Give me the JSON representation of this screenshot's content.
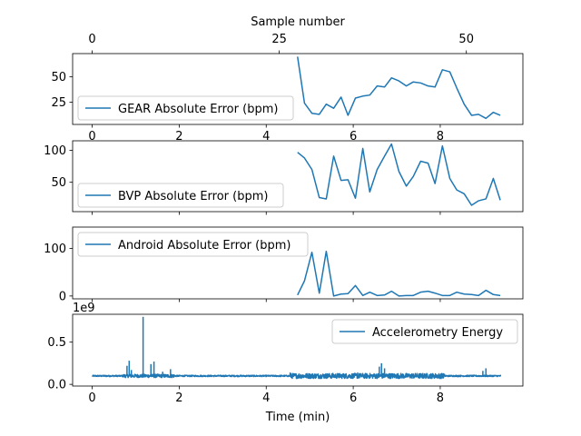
{
  "chart_data": [
    {
      "type": "line",
      "panel": "gear",
      "title": "",
      "xlabel": "",
      "ylabel": "",
      "xlim": [
        -0.45,
        9.9
      ],
      "ylim": [
        3,
        73
      ],
      "xticks": [
        0,
        2,
        4,
        6,
        8
      ],
      "xtick_labels": [
        "0",
        "2",
        "4",
        "6",
        "8"
      ],
      "yticks": [
        25,
        50
      ],
      "ytick_labels": [
        "25",
        "50"
      ],
      "top_axis": {
        "label": "Sample number",
        "ticks": [
          0,
          25,
          50
        ],
        "tick_labels": [
          "0",
          "25",
          "50"
        ]
      },
      "grid": false,
      "legend": "lower-left",
      "series": [
        {
          "name": "GEAR Absolute Error (bpm)",
          "x": [
            4.72,
            4.88,
            5.05,
            5.22,
            5.38,
            5.55,
            5.72,
            5.88,
            6.05,
            6.22,
            6.38,
            6.55,
            6.72,
            6.88,
            7.05,
            7.22,
            7.38,
            7.55,
            7.72,
            7.88,
            8.05,
            8.22,
            8.38,
            8.55,
            8.72,
            8.88,
            9.05,
            9.22,
            9.38
          ],
          "values": [
            70,
            24,
            14,
            13,
            23,
            19,
            30,
            12,
            29,
            31,
            32,
            41,
            40,
            49,
            46,
            41,
            45,
            44,
            41,
            40,
            57,
            55,
            39,
            23,
            12,
            13,
            9,
            15,
            12
          ]
        }
      ]
    },
    {
      "type": "line",
      "panel": "bvp",
      "title": "",
      "xlabel": "",
      "ylabel": "",
      "xlim": [
        -0.45,
        9.9
      ],
      "ylim": [
        4,
        115
      ],
      "xticks": [
        0,
        2,
        4,
        6,
        8
      ],
      "yticks": [
        50,
        100
      ],
      "ytick_labels": [
        "50",
        "100"
      ],
      "grid": false,
      "legend": "lower-left",
      "series": [
        {
          "name": "BVP Absolute Error (bpm)",
          "x": [
            4.72,
            4.88,
            5.05,
            5.22,
            5.38,
            5.55,
            5.72,
            5.88,
            6.05,
            6.22,
            6.38,
            6.55,
            6.72,
            6.88,
            7.05,
            7.22,
            7.38,
            7.55,
            7.72,
            7.88,
            8.05,
            8.22,
            8.38,
            8.55,
            8.72,
            8.88,
            9.05,
            9.22,
            9.38
          ],
          "values": [
            97,
            88,
            70,
            26,
            24,
            91,
            53,
            54,
            25,
            103,
            35,
            70,
            91,
            110,
            67,
            44,
            59,
            83,
            80,
            48,
            107,
            56,
            38,
            32,
            14,
            21,
            24,
            56,
            22
          ]
        }
      ]
    },
    {
      "type": "line",
      "panel": "android",
      "title": "",
      "xlabel": "",
      "ylabel": "",
      "xlim": [
        -0.45,
        9.9
      ],
      "ylim": [
        -6,
        145
      ],
      "xticks": [
        0,
        2,
        4,
        6,
        8
      ],
      "yticks": [
        0,
        100
      ],
      "ytick_labels": [
        "0",
        "100"
      ],
      "grid": false,
      "legend": "upper-left",
      "series": [
        {
          "name": "Android Absolute Error (bpm)",
          "x": [
            4.72,
            4.88,
            5.05,
            5.22,
            5.38,
            5.55,
            5.72,
            5.88,
            6.05,
            6.22,
            6.38,
            6.55,
            6.72,
            6.88,
            7.05,
            7.22,
            7.38,
            7.55,
            7.72,
            7.88,
            8.05,
            8.22,
            8.38,
            8.55,
            8.72,
            8.88,
            9.05,
            9.22,
            9.38
          ],
          "values": [
            2,
            32,
            92,
            6,
            94,
            0,
            4,
            5,
            22,
            1,
            8,
            1,
            2,
            10,
            0,
            1,
            1,
            8,
            10,
            6,
            1,
            1,
            8,
            4,
            3,
            1,
            12,
            3,
            1
          ]
        }
      ]
    },
    {
      "type": "line",
      "panel": "accelerometry",
      "title": "",
      "xlabel": "Time (min)",
      "ylabel": "",
      "scale_label": "1e9",
      "xlim": [
        -0.45,
        9.9
      ],
      "ylim": [
        -0.02,
        0.83
      ],
      "xticks": [
        0,
        2,
        4,
        6,
        8
      ],
      "xtick_labels": [
        "0",
        "2",
        "4",
        "6",
        "8"
      ],
      "yticks": [
        0.0,
        0.5
      ],
      "ytick_labels": [
        "0.0",
        "0.5"
      ],
      "grid": false,
      "legend": "upper-right",
      "series": [
        {
          "name": "Accelerometry Energy",
          "baseline": 0.1,
          "noise": 0.008,
          "spikes": [
            {
              "x": 0.8,
              "value": 0.22
            },
            {
              "x": 0.85,
              "value": 0.28
            },
            {
              "x": 0.9,
              "value": 0.17
            },
            {
              "x": 1.17,
              "value": 0.8
            },
            {
              "x": 1.35,
              "value": 0.24
            },
            {
              "x": 1.42,
              "value": 0.27
            },
            {
              "x": 1.62,
              "value": 0.15
            },
            {
              "x": 1.8,
              "value": 0.18
            },
            {
              "x": 4.55,
              "value": 0.14
            },
            {
              "x": 6.1,
              "value": 0.14
            },
            {
              "x": 6.6,
              "value": 0.21
            },
            {
              "x": 6.65,
              "value": 0.25
            },
            {
              "x": 6.72,
              "value": 0.19
            },
            {
              "x": 8.98,
              "value": 0.16
            },
            {
              "x": 9.05,
              "value": 0.19
            }
          ],
          "active_segments": [
            {
              "x0": 4.55,
              "x1": 8.1,
              "amplitude": 0.03
            },
            {
              "x0": 0.7,
              "x1": 1.9,
              "amplitude": 0.02
            }
          ],
          "x_range": [
            0.0,
            9.4
          ]
        }
      ]
    }
  ]
}
